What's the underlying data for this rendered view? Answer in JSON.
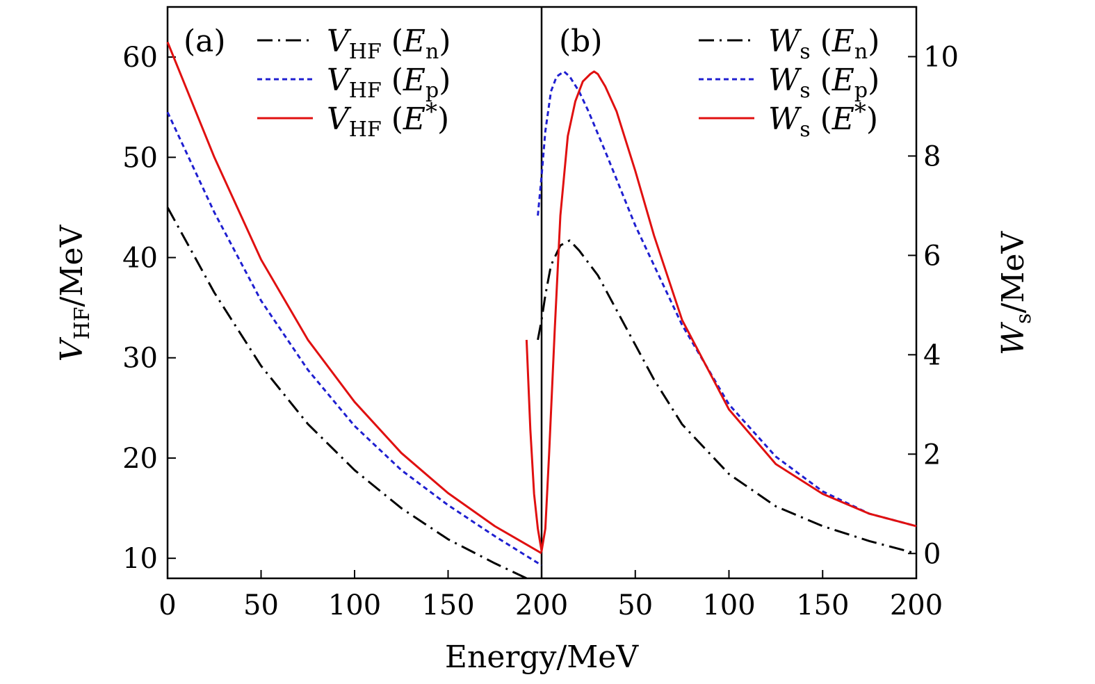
{
  "chart_data": {
    "type": "line",
    "x_axis_title": "Energy/MeV",
    "left_axis": {
      "title_main": "V",
      "title_sub": "HF",
      "title_unit": "/MeV",
      "ylim": [
        8,
        65
      ],
      "ticks": [
        10,
        20,
        30,
        40,
        50,
        60
      ]
    },
    "right_axis": {
      "title_main": "W",
      "title_sub": "s",
      "title_unit": "/MeV",
      "ylim": [
        -0.5,
        11
      ],
      "ticks": [
        0,
        2,
        4,
        6,
        8,
        10
      ]
    },
    "panels": [
      {
        "label": "(a)",
        "xlim": [
          0,
          200
        ],
        "xticks": [
          0,
          50,
          100,
          150,
          200
        ],
        "y_axis": "left",
        "legend": [
          {
            "main": "V",
            "sub": "HF",
            "arg_main": "E",
            "arg_sub": "n",
            "arg_sup": "",
            "style": "dashdot",
            "color": "#000000"
          },
          {
            "main": "V",
            "sub": "HF",
            "arg_main": "E",
            "arg_sub": "p",
            "arg_sup": "",
            "style": "dashed",
            "color": "#1f1fd0"
          },
          {
            "main": "V",
            "sub": "HF",
            "arg_main": "E",
            "arg_sub": "",
            "arg_sup": "*",
            "style": "solid",
            "color": "#e01010"
          }
        ],
        "series": [
          {
            "name": "VHF(En)",
            "color": "#000000",
            "style": "dashdot",
            "x": [
              0,
              25,
              50,
              75,
              100,
              125,
              150,
              175,
              192
            ],
            "y": [
              45,
              36.5,
              29.2,
              23.4,
              18.8,
              15.0,
              11.9,
              9.5,
              8
            ]
          },
          {
            "name": "VHF(Ep)",
            "color": "#1f1fd0",
            "style": "dashed",
            "x": [
              0,
              25,
              50,
              75,
              100,
              125,
              150,
              175,
              200
            ],
            "y": [
              54.5,
              44.5,
              35.7,
              28.8,
              23.2,
              18.8,
              15.3,
              12.2,
              9.3
            ]
          },
          {
            "name": "VHF(E*)",
            "color": "#e01010",
            "style": "solid",
            "x": [
              0,
              25,
              50,
              75,
              100,
              125,
              150,
              175,
              200
            ],
            "y": [
              61.5,
              50.0,
              39.8,
              31.8,
              25.6,
              20.5,
              16.5,
              13.2,
              10.5
            ]
          }
        ]
      },
      {
        "label": "(b)",
        "xlim": [
          0,
          200
        ],
        "xticks": [
          0,
          50,
          100,
          150,
          200
        ],
        "y_axis": "right",
        "legend": [
          {
            "main": "W",
            "sub": "s",
            "arg_main": "E",
            "arg_sub": "n",
            "arg_sup": "",
            "style": "dashdot",
            "color": "#000000"
          },
          {
            "main": "W",
            "sub": "s",
            "arg_main": "E",
            "arg_sub": "p",
            "arg_sup": "",
            "style": "dashed",
            "color": "#1f1fd0"
          },
          {
            "main": "W",
            "sub": "s",
            "arg_main": "E",
            "arg_sub": "",
            "arg_sup": "*",
            "style": "solid",
            "color": "#e01010"
          }
        ],
        "series": [
          {
            "name": "Ws(En)",
            "color": "#000000",
            "style": "dashdot",
            "x": [
              -2,
              0,
              2,
              5,
              10,
              15,
              20,
              30,
              40,
              50,
              60,
              75,
              100,
              125,
              150,
              175,
              200
            ],
            "y": [
              4.3,
              4.7,
              5.2,
              5.8,
              6.2,
              6.3,
              6.1,
              5.6,
              4.9,
              4.2,
              3.5,
              2.6,
              1.6,
              0.95,
              0.55,
              0.25,
              0.0
            ]
          },
          {
            "name": "Ws(Ep)",
            "color": "#1f1fd0",
            "style": "dashed",
            "x": [
              -2,
              0,
              2,
              5,
              8,
              12,
              15,
              20,
              25,
              35,
              50,
              75,
              100,
              125,
              150,
              175,
              200
            ],
            "y": [
              6.8,
              7.6,
              8.5,
              9.3,
              9.6,
              9.7,
              9.6,
              9.3,
              8.9,
              8.0,
              6.6,
              4.6,
              3.0,
              1.95,
              1.25,
              0.8,
              0.55
            ]
          },
          {
            "name": "Ws(E*)",
            "color": "#e01010",
            "style": "solid",
            "x": [
              -8,
              -6,
              -4,
              -2,
              0,
              2,
              4,
              7,
              10,
              14,
              18,
              22,
              26,
              28,
              30,
              34,
              40,
              50,
              60,
              75,
              100,
              125,
              150,
              175,
              200
            ],
            "y": [
              4.3,
              2.5,
              1.2,
              0.5,
              0.05,
              0.5,
              2.0,
              4.5,
              6.8,
              8.4,
              9.1,
              9.5,
              9.65,
              9.7,
              9.65,
              9.4,
              8.9,
              7.7,
              6.4,
              4.7,
              2.9,
              1.8,
              1.2,
              0.8,
              0.55
            ]
          }
        ]
      }
    ]
  }
}
